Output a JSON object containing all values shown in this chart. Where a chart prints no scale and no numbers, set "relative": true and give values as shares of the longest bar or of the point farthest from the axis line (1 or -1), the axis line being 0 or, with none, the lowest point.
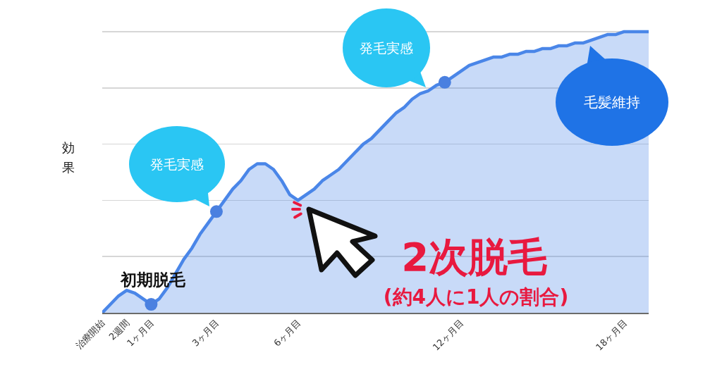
{
  "chart_data": {
    "type": "area",
    "relative": true,
    "categories": [
      "治療開始",
      null,
      null,
      "2週間",
      null,
      null,
      "1ヶ月目",
      null,
      null,
      null,
      null,
      null,
      null,
      null,
      "3ヶ月目",
      null,
      null,
      null,
      null,
      null,
      null,
      null,
      null,
      null,
      "6ヶ月目",
      null,
      null,
      null,
      null,
      null,
      null,
      null,
      null,
      null,
      null,
      null,
      null,
      null,
      null,
      null,
      null,
      null,
      null,
      null,
      "12ヶ月目",
      null,
      null,
      null,
      null,
      null,
      null,
      null,
      null,
      null,
      null,
      null,
      null,
      null,
      null,
      null,
      null,
      null,
      null,
      null,
      "18ヶ月目",
      null,
      null,
      null
    ],
    "series": [
      {
        "color": "#4a86e8",
        "values": [
          0,
          0.03,
          0.06,
          0.08,
          0.07,
          0.05,
          0.03,
          0.05,
          0.09,
          0.14,
          0.19,
          0.23,
          0.28,
          0.32,
          0.36,
          0.4,
          0.44,
          0.47,
          0.51,
          0.53,
          0.53,
          0.51,
          0.47,
          0.42,
          0.4,
          0.42,
          0.44,
          0.47,
          0.49,
          0.51,
          0.54,
          0.57,
          0.6,
          0.62,
          0.65,
          0.68,
          0.71,
          0.73,
          0.76,
          0.78,
          0.79,
          0.81,
          0.82,
          0.84,
          0.86,
          0.88,
          0.89,
          0.9,
          0.91,
          0.91,
          0.92,
          0.92,
          0.93,
          0.93,
          0.94,
          0.94,
          0.95,
          0.95,
          0.96,
          0.96,
          0.97,
          0.98,
          0.99,
          0.99,
          1,
          1,
          1,
          1
        ]
      },
      {
        "type": "scatter",
        "marker": "circle",
        "color": "#4a80e0",
        "values": [
          null,
          null,
          null,
          null,
          null,
          null,
          0.03,
          null,
          null,
          null,
          null,
          null,
          null,
          null,
          0.36,
          null,
          null,
          null,
          null,
          null,
          null,
          null,
          null,
          null,
          null,
          null,
          null,
          null,
          null,
          null,
          null,
          null,
          null,
          null,
          null,
          null,
          null,
          null,
          null,
          null,
          null,
          null,
          0.82,
          null,
          null,
          null,
          null,
          null,
          null,
          null,
          null,
          null,
          null,
          null,
          null,
          null,
          null,
          null,
          null,
          null,
          null,
          null,
          null,
          null,
          null,
          null,
          null,
          null
        ]
      }
    ],
    "ylabel": "効果",
    "annotations": [
      {
        "text": "初期脱毛",
        "x": "1ヶ月目",
        "y": 0.03
      },
      "発毛実感",
      "発毛実感",
      {
        "text": "2次脱毛",
        "x": "6ヶ月目",
        "y": 0.4
      },
      "(約4人に1人の割合)",
      "毛髪維持"
    ],
    "grid": "y"
  }
}
